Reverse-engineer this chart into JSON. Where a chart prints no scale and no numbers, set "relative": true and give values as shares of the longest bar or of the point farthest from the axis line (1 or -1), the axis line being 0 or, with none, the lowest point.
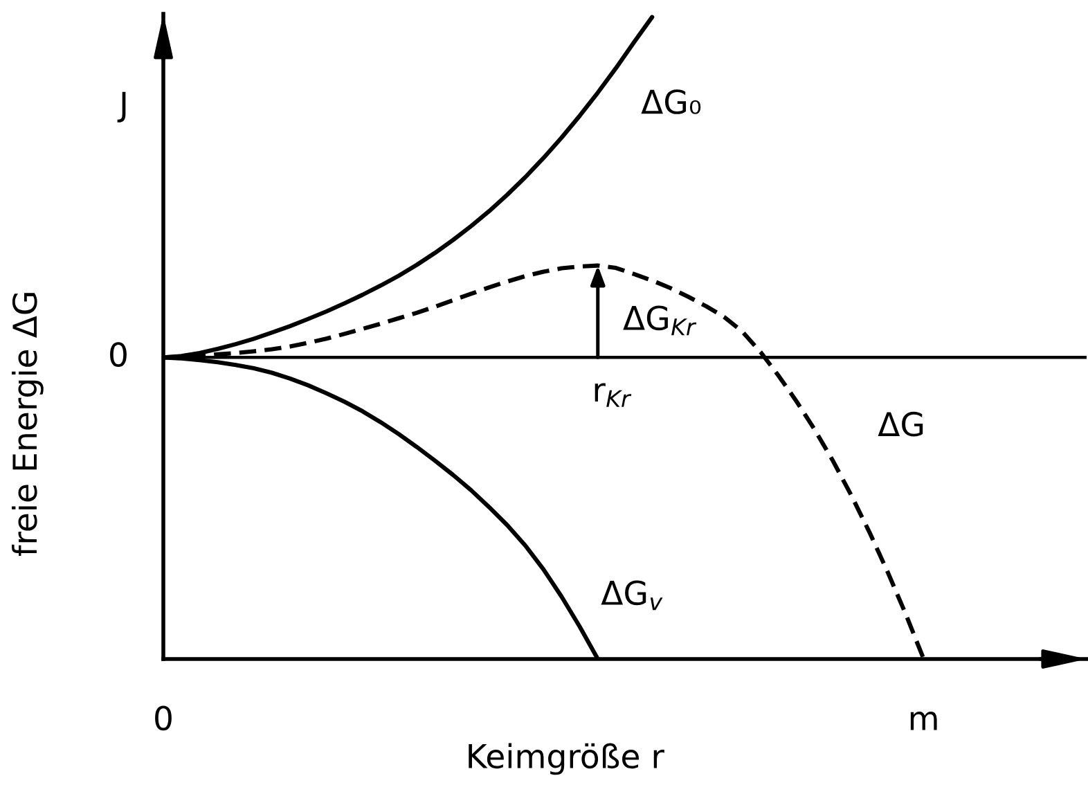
{
  "chart_data": {
    "type": "line",
    "relative": true,
    "xlabel": "Keimgröße r",
    "ylabel": "freie Energie ΔG",
    "line_style": "solid",
    "categories": [
      "0",
      null,
      null,
      null,
      null,
      null,
      null,
      null,
      null,
      null,
      null,
      null,
      null,
      null,
      null,
      null,
      null,
      null,
      null,
      null,
      null,
      null,
      null,
      null,
      null,
      null,
      null,
      null,
      null,
      null,
      null,
      null,
      null,
      null,
      null,
      null,
      null,
      null,
      null,
      null,
      null,
      null,
      "m",
      null,
      null,
      null,
      null,
      null,
      null,
      null,
      null,
      null
    ],
    "series": [
      {
        "name": "ΔG₀",
        "color": "#000000",
        "values": [
          0,
          0.004,
          0.013,
          0.025,
          0.039,
          0.055,
          0.073,
          0.092,
          0.113,
          0.135,
          0.159,
          0.184,
          0.211,
          0.24,
          0.272,
          0.307,
          0.345,
          0.386,
          0.43,
          0.478,
          0.53,
          0.586,
          0.646,
          0.71,
          0.778,
          0.85,
          0.926,
          1.0,
          null,
          null,
          null,
          null,
          null,
          null,
          null,
          null,
          null,
          null,
          null,
          null,
          null,
          null,
          null,
          null,
          null,
          null,
          null,
          null,
          null,
          null,
          null,
          null
        ]
      },
      {
        "name": "ΔG$_{v}$",
        "color": "#000000",
        "values": [
          0,
          -0.003,
          -0.008,
          -0.014,
          -0.022,
          -0.032,
          -0.045,
          -0.062,
          -0.082,
          -0.105,
          -0.13,
          -0.158,
          -0.19,
          -0.225,
          -0.263,
          -0.303,
          -0.345,
          -0.39,
          -0.44,
          -0.493,
          -0.553,
          -0.623,
          -0.703,
          -0.791,
          -0.886,
          null,
          null,
          null,
          null,
          null,
          null,
          null,
          null,
          null,
          null,
          null,
          null,
          null,
          null,
          null,
          null,
          null,
          null,
          null,
          null,
          null,
          null,
          null,
          null,
          null,
          null,
          null
        ]
      },
      {
        "name": "ΔG",
        "color": "#000000",
        "line_style": "dashed",
        "values": [
          0,
          0.002,
          0.005,
          0.009,
          0.013,
          0.018,
          0.024,
          0.032,
          0.043,
          0.055,
          0.069,
          0.084,
          0.099,
          0.115,
          0.131,
          0.149,
          0.168,
          0.187,
          0.206,
          0.223,
          0.239,
          0.252,
          0.262,
          0.267,
          0.27,
          0.263,
          0.245,
          0.226,
          0.204,
          0.178,
          0.15,
          0.118,
          0.075,
          0.015,
          -0.055,
          -0.131,
          -0.214,
          -0.305,
          -0.405,
          -0.513,
          -0.629,
          -0.753,
          -0.886,
          null,
          null,
          null,
          null,
          null,
          null,
          null,
          null,
          null
        ]
      }
    ],
    "ref_lines": [
      {
        "axis": "y",
        "value": 0,
        "label": "0",
        "color": "#000000"
      }
    ],
    "annotations": [
      {
        "text": "r$_{Kr}$",
        "y": 0
      },
      "ΔG$_{Kr}$",
      "J"
    ]
  }
}
